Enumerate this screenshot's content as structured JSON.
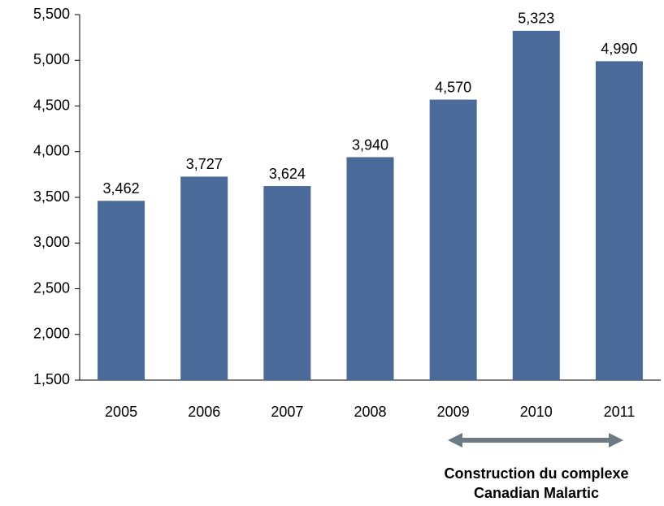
{
  "chart_data": {
    "type": "bar",
    "categories": [
      "2005",
      "2006",
      "2007",
      "2008",
      "2009",
      "2010",
      "2011"
    ],
    "values": [
      3462,
      3727,
      3624,
      3940,
      4570,
      5323,
      4990
    ],
    "value_labels": [
      "3,462",
      "3,727",
      "3,624",
      "3,940",
      "4,570",
      "5,323",
      "4,990"
    ],
    "color": "#4a6a9a",
    "ylim": [
      1500,
      5500
    ],
    "yticks": [
      {
        "value": 1500,
        "label": "1,500"
      },
      {
        "value": 2000,
        "label": "2,000"
      },
      {
        "value": 2500,
        "label": "2,500"
      },
      {
        "value": 3000,
        "label": "3,000"
      },
      {
        "value": 3500,
        "label": "3,500"
      },
      {
        "value": 4000,
        "label": "4,000"
      },
      {
        "value": 4500,
        "label": "4,500"
      },
      {
        "value": 5000,
        "label": "5,000"
      },
      {
        "value": 5500,
        "label": "5,500"
      }
    ],
    "annotation": [
      "Construction du complexe",
      "Canadian Malartic"
    ]
  }
}
